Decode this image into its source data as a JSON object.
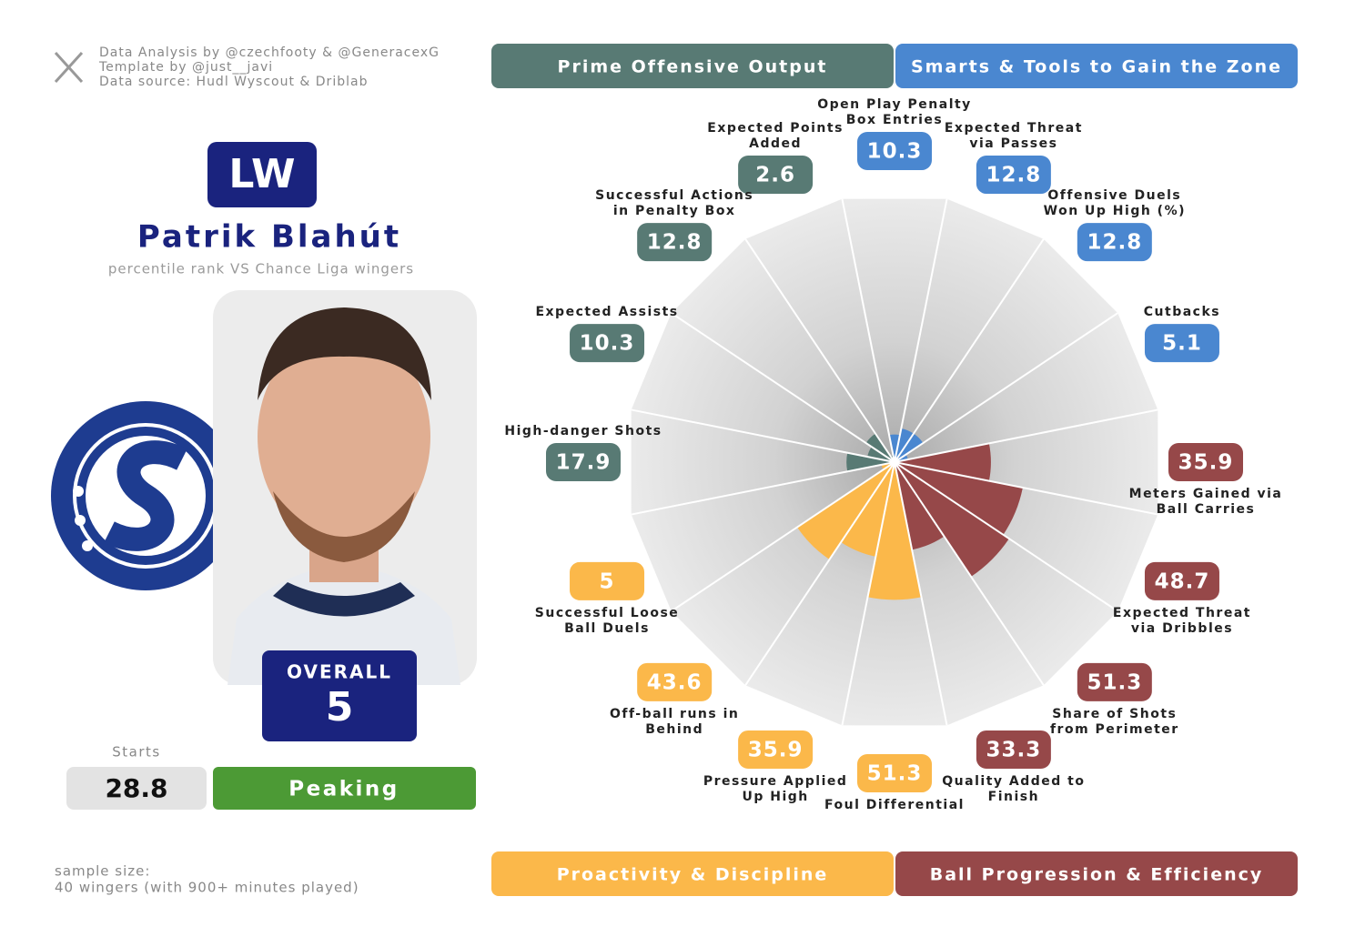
{
  "credits": [
    "Data Analysis by @czechfooty & @GeneracexG",
    "Template by @just__javi",
    "Data source: Hudl Wyscout & Driblab"
  ],
  "player": {
    "position": "LW",
    "name": "Patrik Blahút",
    "subtitle": "percentile rank VS Chance Liga wingers",
    "overall_label": "OVERALL",
    "overall": 5,
    "starts_label": "Starts",
    "starts": 28.8,
    "status": "Peaking"
  },
  "sample_size": [
    "sample size:",
    "40 wingers (with 900+ minutes played)"
  ],
  "chart_data": {
    "type": "pizza",
    "rlim": [
      0,
      100
    ],
    "series": [
      {
        "name": "Smarts & Tools to Gain the Zone",
        "color": "#4a87d0",
        "categories": [
          "Open Play Penalty Box Entries",
          "Expected Threat via Passes",
          "Offensive Duels Won Up High (%)",
          "Cutbacks"
        ],
        "values": [
          10.3,
          12.8,
          12.8,
          5.1
        ]
      },
      {
        "name": "Ball Progression & Efficiency",
        "color": "#964849",
        "categories": [
          "Meters Gained via Ball Carries",
          "Expected Threat via Dribbles",
          "Share of Shots from Perimeter",
          "Quality Added to Finish"
        ],
        "values": [
          35.9,
          48.7,
          51.3,
          33.3
        ]
      },
      {
        "name": "Proactivity & Discipline",
        "color": "#fbb84a",
        "categories": [
          "Foul Differential",
          "Pressure Applied Up High",
          "Off-ball runs in Behind",
          "Successful Loose Ball Duels"
        ],
        "values": [
          51.3,
          35.9,
          43.6,
          5
        ]
      },
      {
        "name": "Prime Offensive Output",
        "color": "#587a74",
        "categories": [
          "High-danger Shots",
          "Expected Assists",
          "Successful Actions in Penalty Box",
          "Expected Points Added"
        ],
        "values": [
          17.9,
          10.3,
          12.8,
          2.6
        ]
      }
    ]
  }
}
